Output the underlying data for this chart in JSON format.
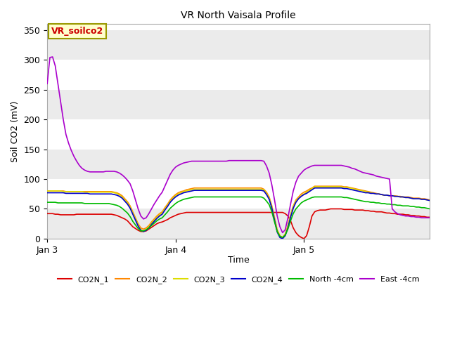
{
  "title": "VR North Vaisala Profile",
  "ylabel": "Soil CO2 (mV)",
  "xlabel": "Time",
  "annotation": "VR_soilco2",
  "annotation_color": "#cc0000",
  "annotation_bg": "#ffffcc",
  "annotation_border": "#999900",
  "ylim": [
    0,
    360
  ],
  "yticks": [
    0,
    50,
    100,
    150,
    200,
    250,
    300,
    350
  ],
  "bg_color": "#ffffff",
  "series": {
    "CO2N_1": {
      "color": "#dd0000",
      "linewidth": 1.2
    },
    "CO2N_2": {
      "color": "#ff8800",
      "linewidth": 1.2
    },
    "CO2N_3": {
      "color": "#dddd00",
      "linewidth": 1.2
    },
    "CO2N_4": {
      "color": "#0000cc",
      "linewidth": 1.2
    },
    "North -4cm": {
      "color": "#00bb00",
      "linewidth": 1.2
    },
    "East -4cm": {
      "color": "#aa00cc",
      "linewidth": 1.2
    }
  },
  "x_ticks": [
    0,
    48,
    96
  ],
  "x_tick_labels": [
    "Jan 3",
    "Jan 4",
    "Jan 5"
  ],
  "total_points": 144,
  "CO2N_1_data": [
    42,
    42,
    42,
    41,
    41,
    40,
    40,
    40,
    40,
    40,
    40,
    41,
    41,
    41,
    41,
    41,
    41,
    41,
    41,
    41,
    41,
    41,
    41,
    41,
    41,
    40,
    39,
    37,
    35,
    33,
    30,
    25,
    20,
    17,
    14,
    12,
    12,
    13,
    16,
    19,
    22,
    25,
    27,
    28,
    30,
    32,
    35,
    37,
    39,
    41,
    42,
    43,
    44,
    44,
    44,
    44,
    44,
    44,
    44,
    44,
    44,
    44,
    44,
    44,
    44,
    44,
    44,
    44,
    44,
    44,
    44,
    44,
    44,
    44,
    44,
    44,
    44,
    44,
    44,
    44,
    44,
    44,
    44,
    44,
    44,
    44,
    44,
    44,
    44,
    42,
    38,
    30,
    18,
    10,
    5,
    2,
    0,
    5,
    20,
    38,
    45,
    47,
    48,
    48,
    48,
    49,
    50,
    50,
    50,
    50,
    50,
    49,
    49,
    49,
    49,
    48,
    48,
    48,
    48,
    47,
    47,
    46,
    46,
    45,
    45,
    45,
    44,
    43,
    43,
    42,
    42,
    41,
    41,
    41,
    40,
    40,
    39,
    39,
    38,
    38,
    37,
    37,
    36,
    36
  ],
  "CO2N_2_data": [
    80,
    80,
    80,
    80,
    80,
    80,
    80,
    79,
    79,
    79,
    79,
    79,
    79,
    79,
    79,
    79,
    79,
    79,
    79,
    79,
    79,
    79,
    79,
    79,
    79,
    78,
    77,
    75,
    72,
    67,
    62,
    55,
    45,
    35,
    25,
    18,
    16,
    18,
    22,
    28,
    33,
    38,
    42,
    45,
    52,
    58,
    65,
    70,
    74,
    77,
    79,
    80,
    82,
    83,
    84,
    85,
    85,
    85,
    85,
    85,
    85,
    85,
    85,
    85,
    85,
    85,
    85,
    85,
    85,
    85,
    85,
    85,
    85,
    85,
    85,
    85,
    85,
    85,
    85,
    85,
    85,
    83,
    78,
    70,
    55,
    35,
    15,
    5,
    2,
    8,
    22,
    40,
    55,
    65,
    70,
    75,
    78,
    80,
    83,
    85,
    88,
    88,
    88,
    88,
    88,
    88,
    88,
    88,
    88,
    88,
    88,
    87,
    87,
    86,
    85,
    84,
    83,
    82,
    81,
    80,
    79,
    78,
    77,
    76,
    75,
    74,
    73,
    73,
    72,
    72,
    72,
    71,
    71,
    70,
    70,
    70,
    69,
    68,
    68,
    68,
    67,
    67,
    66,
    65
  ],
  "CO2N_3_data": [
    80,
    80,
    80,
    80,
    80,
    80,
    79,
    79,
    79,
    79,
    79,
    79,
    79,
    79,
    78,
    78,
    78,
    78,
    78,
    78,
    78,
    78,
    78,
    78,
    78,
    77,
    76,
    73,
    70,
    65,
    60,
    53,
    43,
    33,
    23,
    15,
    13,
    15,
    20,
    26,
    31,
    36,
    40,
    43,
    50,
    56,
    63,
    68,
    72,
    75,
    77,
    79,
    80,
    81,
    82,
    83,
    83,
    83,
    83,
    83,
    83,
    83,
    83,
    83,
    83,
    83,
    83,
    83,
    83,
    83,
    83,
    83,
    83,
    83,
    83,
    83,
    83,
    83,
    83,
    83,
    83,
    82,
    76,
    68,
    53,
    33,
    13,
    4,
    1,
    7,
    21,
    39,
    54,
    63,
    68,
    72,
    75,
    78,
    81,
    84,
    87,
    87,
    87,
    87,
    87,
    87,
    87,
    87,
    87,
    87,
    87,
    86,
    86,
    85,
    84,
    83,
    82,
    81,
    80,
    79,
    78,
    77,
    76,
    75,
    75,
    74,
    73,
    73,
    72,
    72,
    71,
    71,
    70,
    70,
    69,
    69,
    68,
    67,
    67,
    67,
    66,
    66,
    65,
    64
  ],
  "CO2N_4_data": [
    77,
    77,
    77,
    77,
    77,
    77,
    77,
    76,
    76,
    76,
    76,
    76,
    76,
    76,
    76,
    76,
    75,
    75,
    75,
    75,
    75,
    75,
    75,
    75,
    75,
    74,
    73,
    71,
    68,
    63,
    58,
    51,
    41,
    31,
    21,
    14,
    12,
    14,
    18,
    24,
    29,
    34,
    38,
    41,
    48,
    54,
    61,
    66,
    70,
    73,
    75,
    77,
    78,
    79,
    80,
    81,
    81,
    81,
    81,
    81,
    81,
    81,
    81,
    81,
    81,
    81,
    81,
    81,
    81,
    81,
    81,
    81,
    81,
    81,
    81,
    81,
    81,
    81,
    81,
    81,
    81,
    80,
    74,
    66,
    51,
    31,
    11,
    2,
    0,
    5,
    18,
    36,
    51,
    61,
    67,
    71,
    74,
    76,
    79,
    82,
    85,
    85,
    85,
    85,
    85,
    85,
    85,
    85,
    85,
    85,
    85,
    84,
    84,
    83,
    82,
    81,
    80,
    79,
    78,
    77,
    77,
    76,
    76,
    75,
    75,
    74,
    73,
    73,
    72,
    72,
    71,
    71,
    70,
    70,
    69,
    69,
    68,
    67,
    67,
    67,
    66,
    66,
    65,
    64
  ],
  "North_4cm_data": [
    61,
    61,
    61,
    61,
    60,
    60,
    60,
    60,
    60,
    60,
    60,
    60,
    60,
    60,
    59,
    59,
    59,
    59,
    59,
    59,
    59,
    59,
    59,
    59,
    58,
    57,
    56,
    54,
    51,
    47,
    43,
    37,
    29,
    23,
    17,
    13,
    13,
    15,
    18,
    22,
    26,
    30,
    33,
    35,
    40,
    45,
    51,
    55,
    59,
    62,
    64,
    66,
    67,
    68,
    69,
    70,
    70,
    70,
    70,
    70,
    70,
    70,
    70,
    70,
    70,
    70,
    70,
    70,
    70,
    70,
    70,
    70,
    70,
    70,
    70,
    70,
    70,
    70,
    70,
    70,
    70,
    68,
    63,
    57,
    45,
    28,
    12,
    4,
    2,
    6,
    16,
    30,
    42,
    50,
    55,
    60,
    63,
    65,
    67,
    69,
    70,
    70,
    70,
    70,
    70,
    70,
    70,
    70,
    70,
    70,
    70,
    69,
    69,
    68,
    67,
    66,
    65,
    64,
    63,
    62,
    62,
    61,
    61,
    60,
    60,
    59,
    59,
    58,
    58,
    57,
    57,
    56,
    56,
    55,
    55,
    55,
    54,
    54,
    53,
    53,
    52,
    52,
    51,
    50
  ],
  "East_4cm_data": [
    260,
    304,
    305,
    290,
    260,
    230,
    200,
    175,
    160,
    148,
    138,
    130,
    123,
    118,
    115,
    113,
    112,
    112,
    112,
    112,
    112,
    112,
    113,
    113,
    113,
    113,
    112,
    110,
    107,
    103,
    98,
    92,
    80,
    65,
    50,
    38,
    33,
    35,
    42,
    50,
    58,
    65,
    72,
    78,
    88,
    98,
    108,
    115,
    120,
    123,
    125,
    127,
    128,
    129,
    130,
    130,
    130,
    130,
    130,
    130,
    130,
    130,
    130,
    130,
    130,
    130,
    130,
    130,
    131,
    131,
    131,
    131,
    131,
    131,
    131,
    131,
    131,
    131,
    131,
    131,
    131,
    130,
    122,
    110,
    90,
    65,
    38,
    20,
    10,
    15,
    35,
    58,
    80,
    95,
    105,
    110,
    115,
    118,
    120,
    122,
    123,
    123,
    123,
    123,
    123,
    123,
    123,
    123,
    123,
    123,
    123,
    122,
    121,
    120,
    118,
    117,
    115,
    113,
    111,
    110,
    109,
    108,
    107,
    105,
    104,
    103,
    102,
    101,
    100,
    50,
    45,
    42,
    40,
    39,
    38,
    38,
    37,
    37,
    36,
    36,
    35,
    35,
    35,
    35
  ]
}
